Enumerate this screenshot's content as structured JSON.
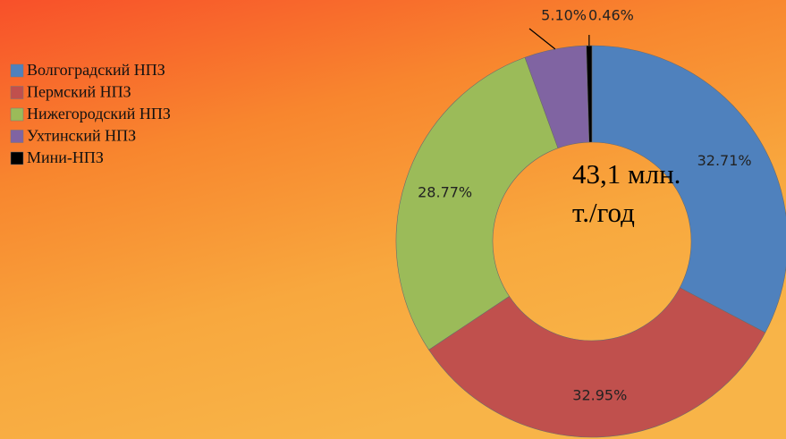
{
  "chart_data": {
    "type": "donut",
    "categories": [
      "Волгоградский НПЗ",
      "Пермский НПЗ",
      "Нижегородский НПЗ",
      "Ухтинский НПЗ",
      "Мини-НПЗ"
    ],
    "values": [
      32.71,
      32.95,
      28.77,
      5.1,
      0.46
    ],
    "value_labels": [
      "32.71%",
      "32.95%",
      "28.77%",
      "5.10%",
      "0.46%"
    ],
    "colors": [
      "#4f81bd",
      "#c0504d",
      "#9bbb59",
      "#8064a2",
      "#000000"
    ],
    "center_text": [
      "43,1 млн.",
      "т./год"
    ],
    "legend": "left"
  }
}
